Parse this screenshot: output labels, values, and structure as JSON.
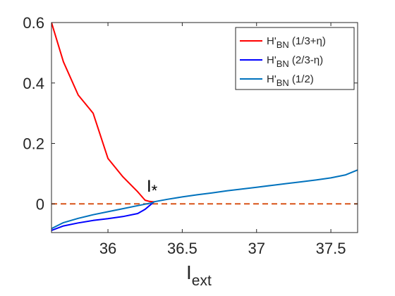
{
  "chart_data": {
    "type": "line",
    "xlim": [
      35.62,
      37.68
    ],
    "ylim": [
      -0.095,
      0.6
    ],
    "xticks": [
      "36",
      "36.5",
      "37",
      "37.5"
    ],
    "yticks": [
      "0",
      "0.2",
      "0.4",
      "0.6"
    ],
    "xlabel_main": "I",
    "xlabel_sub": "ext",
    "ylabel": "",
    "grid": false,
    "legend_position": "top-right",
    "annotation": {
      "main": "I",
      "sub": "*",
      "x": 36.31,
      "y": 0.007
    },
    "reference_line": {
      "y": 0,
      "color": "#D95319",
      "style": "dashed"
    },
    "series": [
      {
        "name_main": "H'",
        "name_sub": "BN",
        "name_rest": " (1/3+η)",
        "color": "#FF0000",
        "x": [
          35.62,
          35.7,
          35.8,
          35.9,
          36.0,
          36.1,
          36.2,
          36.25,
          36.28,
          36.3,
          36.31
        ],
        "y": [
          0.6,
          0.47,
          0.36,
          0.3,
          0.15,
          0.09,
          0.04,
          0.012,
          0.008,
          0.007,
          0.007
        ]
      },
      {
        "name_main": "H'",
        "name_sub": "BN",
        "name_rest": " (2/3-η)",
        "color": "#0000FF",
        "x": [
          35.62,
          35.7,
          35.8,
          35.9,
          36.0,
          36.1,
          36.2,
          36.25,
          36.31
        ],
        "y": [
          -0.088,
          -0.073,
          -0.063,
          -0.055,
          -0.049,
          -0.042,
          -0.032,
          -0.018,
          0.007
        ]
      },
      {
        "name_main": "H'",
        "name_sub": "BN",
        "name_rest": " (1/2)",
        "color": "#0072BD",
        "x": [
          35.62,
          35.7,
          35.8,
          35.9,
          36.0,
          36.1,
          36.2,
          36.3,
          36.31,
          36.4,
          36.5,
          36.6,
          36.7,
          36.8,
          36.9,
          37.0,
          37.1,
          37.2,
          37.3,
          37.4,
          37.5,
          37.6,
          37.68
        ],
        "y": [
          -0.082,
          -0.062,
          -0.048,
          -0.036,
          -0.026,
          -0.016,
          -0.006,
          0.004,
          0.007,
          0.015,
          0.023,
          0.03,
          0.036,
          0.043,
          0.049,
          0.055,
          0.061,
          0.067,
          0.073,
          0.079,
          0.086,
          0.096,
          0.112
        ]
      }
    ]
  }
}
